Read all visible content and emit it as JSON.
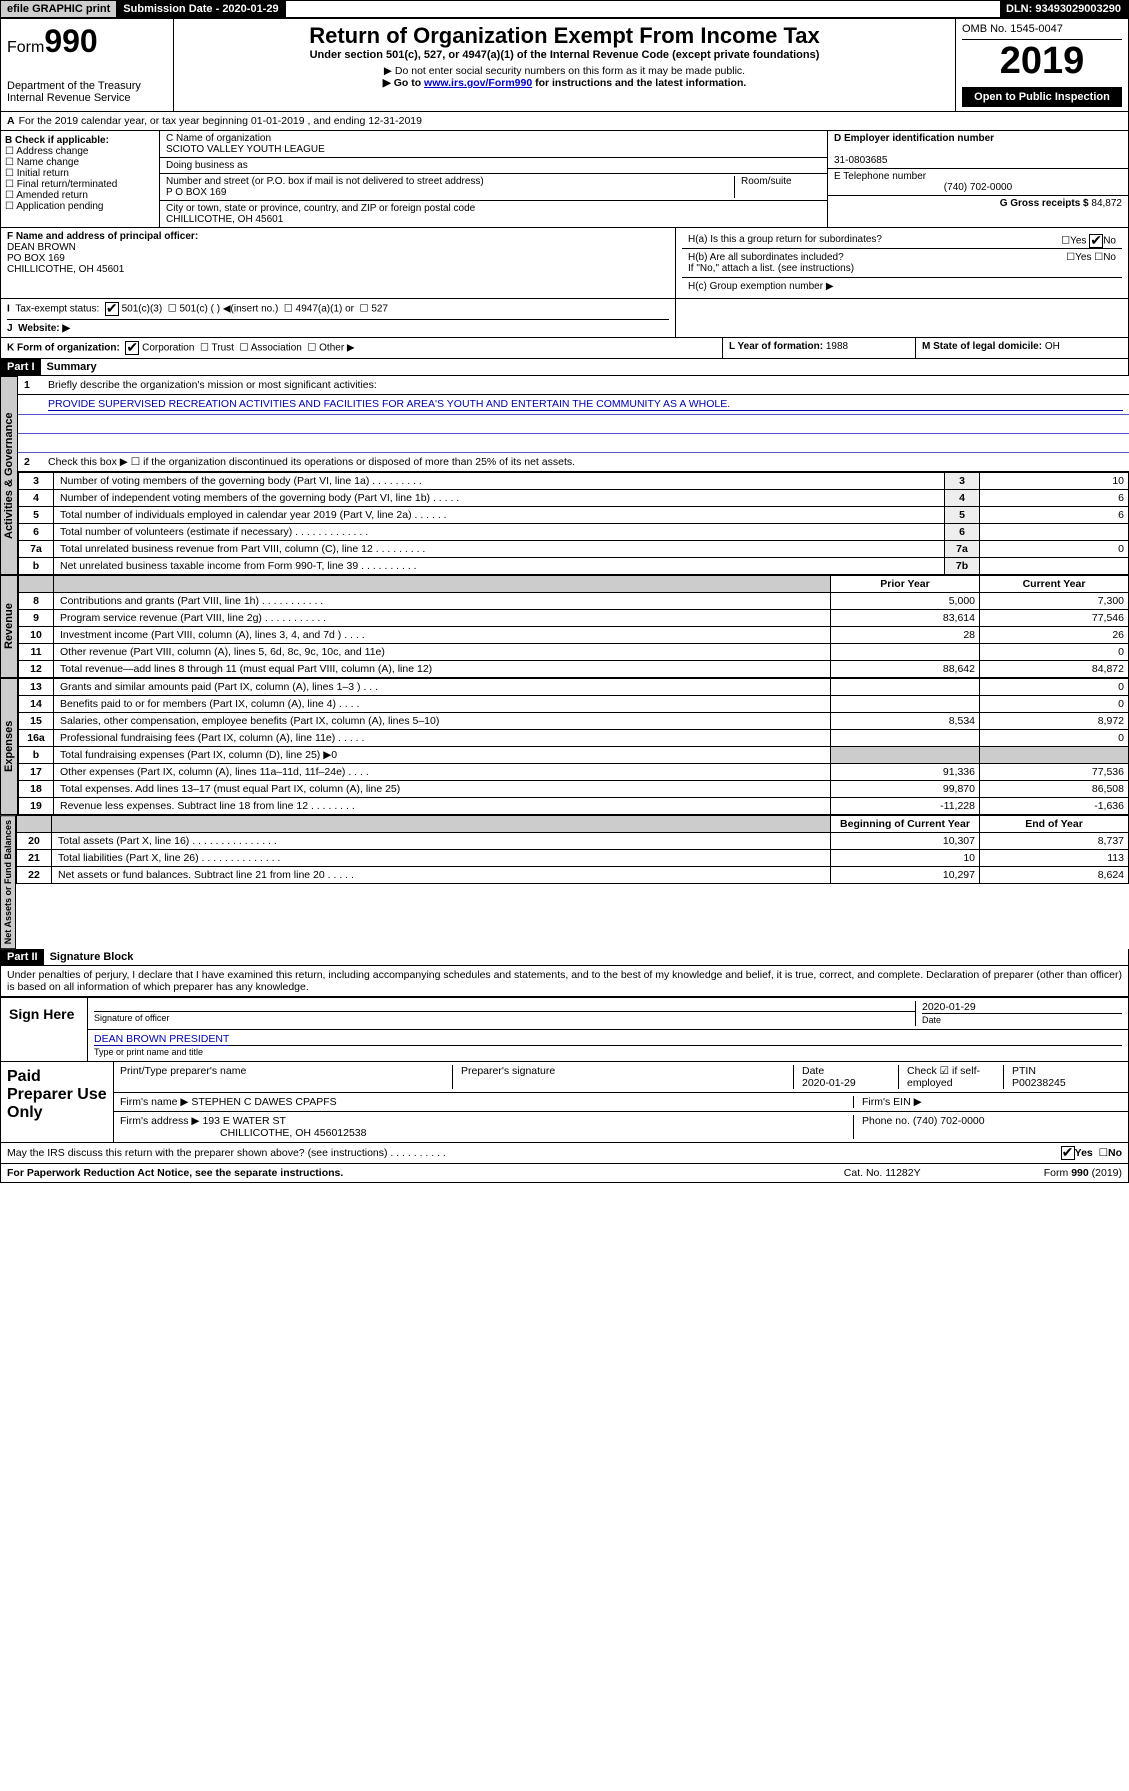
{
  "top": {
    "efile_label": "efile GRAPHIC print",
    "submission_label": "Submission Date - 2020-01-29",
    "dln": "DLN: 93493029003290"
  },
  "header": {
    "form_word": "Form",
    "form_num": "990",
    "dept": "Department of the Treasury",
    "irs": "Internal Revenue Service",
    "title": "Return of Organization Exempt From Income Tax",
    "subtitle": "Under section 501(c), 527, or 4947(a)(1) of the Internal Revenue Code (except private foundations)",
    "note1": "▶ Do not enter social security numbers on this form as it may be made public.",
    "note2_pre": "▶ Go to ",
    "note2_link": "www.irs.gov/Form990",
    "note2_post": " for instructions and the latest information.",
    "omb": "OMB No. 1545-0047",
    "year": "2019",
    "open": "Open to Public Inspection"
  },
  "periodA": "For the 2019 calendar year, or tax year beginning 01-01-2019   , and ending 12-31-2019",
  "B": {
    "head": "B Check if applicable:",
    "items": [
      "Address change",
      "Name change",
      "Initial return",
      "Final return/terminated",
      "Amended return",
      "Application pending"
    ]
  },
  "C": {
    "name_lbl": "C Name of organization",
    "name": "SCIOTO VALLEY YOUTH LEAGUE",
    "dba_lbl": "Doing business as",
    "addr_lbl": "Number and street (or P.O. box if mail is not delivered to street address)",
    "room_lbl": "Room/suite",
    "addr": "P O BOX 169",
    "city_lbl": "City or town, state or province, country, and ZIP or foreign postal code",
    "city": "CHILLICOTHE, OH  45601"
  },
  "D": {
    "lbl": "D Employer identification number",
    "val": "31-0803685"
  },
  "E": {
    "lbl": "E Telephone number",
    "val": "(740) 702-0000"
  },
  "G": {
    "lbl": "G Gross receipts $",
    "val": "84,872"
  },
  "F": {
    "lbl": "F  Name and address of principal officer:",
    "name": "DEAN BROWN",
    "addr1": "PO BOX 169",
    "addr2": "CHILLICOTHE, OH  45601"
  },
  "H": {
    "a": "H(a)  Is this a group return for subordinates?",
    "b": "H(b)  Are all subordinates included?",
    "b2": "If \"No,\" attach a list. (see instructions)",
    "c": "H(c)  Group exemption number ▶"
  },
  "I": {
    "lbl": "Tax-exempt status:",
    "opts": [
      "501(c)(3)",
      "501(c) (  ) ◀(insert no.)",
      "4947(a)(1) or",
      "527"
    ]
  },
  "J": {
    "lbl": "Website: ▶"
  },
  "K": {
    "lbl": "K Form of organization:",
    "opts": [
      "Corporation",
      "Trust",
      "Association",
      "Other ▶"
    ]
  },
  "L": {
    "lbl": "L Year of formation:",
    "val": "1988"
  },
  "M": {
    "lbl": "M State of legal domicile:",
    "val": "OH"
  },
  "partI": {
    "bar": "Part I",
    "title": "Summary"
  },
  "tabs": {
    "ag": "Activities & Governance",
    "rev": "Revenue",
    "exp": "Expenses",
    "net": "Net Assets or Fund Balances"
  },
  "p1": {
    "l1": "Briefly describe the organization's mission or most significant activities:",
    "l1v": "PROVIDE SUPERVISED RECREATION ACTIVITIES AND FACILITIES FOR AREA'S YOUTH AND ENTERTAIN THE COMMUNITY AS A WHOLE.",
    "l2": "Check this box ▶ ☐  if the organization discontinued its operations or disposed of more than 25% of its net assets.",
    "rows": [
      {
        "n": "3",
        "d": "Number of voting members of the governing body (Part VI, line 1a)  .  .  .  .  .  .  .  .  .",
        "cb": "3",
        "v": "10"
      },
      {
        "n": "4",
        "d": "Number of independent voting members of the governing body (Part VI, line 1b)  .  .  .  .  .",
        "cb": "4",
        "v": "6"
      },
      {
        "n": "5",
        "d": "Total number of individuals employed in calendar year 2019 (Part V, line 2a)  .  .  .  .  .  .",
        "cb": "5",
        "v": "6"
      },
      {
        "n": "6",
        "d": "Total number of volunteers (estimate if necessary)  .  .  .  .  .  .  .  .  .  .  .  .  .",
        "cb": "6",
        "v": ""
      },
      {
        "n": "7a",
        "d": "Total unrelated business revenue from Part VIII, column (C), line 12  .  .  .  .  .  .  .  .  .",
        "cb": "7a",
        "v": "0"
      },
      {
        "n": "b",
        "d": "Net unrelated business taxable income from Form 990-T, line 39  .  .  .  .  .  .  .  .  .  .",
        "cb": "7b",
        "v": ""
      }
    ],
    "hdr_py": "Prior Year",
    "hdr_cy": "Current Year",
    "rev": [
      {
        "n": "8",
        "d": "Contributions and grants (Part VIII, line 1h)  .  .  .  .  .  .  .  .  .  .  .",
        "p": "5,000",
        "c": "7,300"
      },
      {
        "n": "9",
        "d": "Program service revenue (Part VIII, line 2g)  .  .  .  .  .  .  .  .  .  .  .",
        "p": "83,614",
        "c": "77,546"
      },
      {
        "n": "10",
        "d": "Investment income (Part VIII, column (A), lines 3, 4, and 7d )  .  .  .  .",
        "p": "28",
        "c": "26"
      },
      {
        "n": "11",
        "d": "Other revenue (Part VIII, column (A), lines 5, 6d, 8c, 9c, 10c, and 11e)",
        "p": "",
        "c": "0"
      },
      {
        "n": "12",
        "d": "Total revenue—add lines 8 through 11 (must equal Part VIII, column (A), line 12)",
        "p": "88,642",
        "c": "84,872"
      }
    ],
    "exp": [
      {
        "n": "13",
        "d": "Grants and similar amounts paid (Part IX, column (A), lines 1–3 )  .  .  .",
        "p": "",
        "c": "0"
      },
      {
        "n": "14",
        "d": "Benefits paid to or for members (Part IX, column (A), line 4)  .  .  .  .",
        "p": "",
        "c": "0"
      },
      {
        "n": "15",
        "d": "Salaries, other compensation, employee benefits (Part IX, column (A), lines 5–10)",
        "p": "8,534",
        "c": "8,972"
      },
      {
        "n": "16a",
        "d": "Professional fundraising fees (Part IX, column (A), line 11e)  .  .  .  .  .",
        "p": "",
        "c": "0"
      },
      {
        "n": "b",
        "d": "Total fundraising expenses (Part IX, column (D), line 25) ▶0",
        "p": "—shade—",
        "c": "—shade—"
      },
      {
        "n": "17",
        "d": "Other expenses (Part IX, column (A), lines 11a–11d, 11f–24e)  .  .  .  .",
        "p": "91,336",
        "c": "77,536"
      },
      {
        "n": "18",
        "d": "Total expenses. Add lines 13–17 (must equal Part IX, column (A), line 25)",
        "p": "99,870",
        "c": "86,508"
      },
      {
        "n": "19",
        "d": "Revenue less expenses. Subtract line 18 from line 12  .  .  .  .  .  .  .  .",
        "p": "-11,228",
        "c": "-1,636"
      }
    ],
    "hdr_boy": "Beginning of Current Year",
    "hdr_eoy": "End of Year",
    "net": [
      {
        "n": "20",
        "d": "Total assets (Part X, line 16)  .  .  .  .  .  .  .  .  .  .  .  .  .  .  .",
        "p": "10,307",
        "c": "8,737"
      },
      {
        "n": "21",
        "d": "Total liabilities (Part X, line 26)  .  .  .  .  .  .  .  .  .  .  .  .  .  .",
        "p": "10",
        "c": "113"
      },
      {
        "n": "22",
        "d": "Net assets or fund balances. Subtract line 21 from line 20  .  .  .  .  .",
        "p": "10,297",
        "c": "8,624"
      }
    ]
  },
  "partII": {
    "bar": "Part II",
    "title": "Signature Block"
  },
  "perjury": "Under penalties of perjury, I declare that I have examined this return, including accompanying schedules and statements, and to the best of my knowledge and belief, it is true, correct, and complete. Declaration of preparer (other than officer) is based on all information of which preparer has any knowledge.",
  "sign": {
    "here": "Sign Here",
    "sig_lbl": "Signature of officer",
    "date": "2020-01-29",
    "date_lbl": "Date",
    "name": "DEAN BROWN  PRESIDENT",
    "name_lbl": "Type or print name and title"
  },
  "paid": {
    "title": "Paid Preparer Use Only",
    "h1": "Print/Type preparer's name",
    "h2": "Preparer's signature",
    "h3": "Date",
    "h3v": "2020-01-29",
    "h4": "Check ☑ if self-employed",
    "h5": "PTIN",
    "h5v": "P00238245",
    "fn_lbl": "Firm's name   ▶",
    "fn": "STEPHEN C DAWES CPAPFS",
    "fein_lbl": "Firm's EIN ▶",
    "fa_lbl": "Firm's address ▶",
    "fa1": "193 E WATER ST",
    "fa2": "CHILLICOTHE, OH  456012538",
    "ph_lbl": "Phone no.",
    "ph": "(740) 702-0000"
  },
  "discuss": "May the IRS discuss this return with the preparer shown above? (see instructions)   .  .  .  .  .  .  .  .  .  .",
  "yes": "Yes",
  "no": "No",
  "foot": {
    "l": "For Paperwork Reduction Act Notice, see the separate instructions.",
    "c": "Cat. No. 11282Y",
    "r": "Form 990 (2019)"
  }
}
